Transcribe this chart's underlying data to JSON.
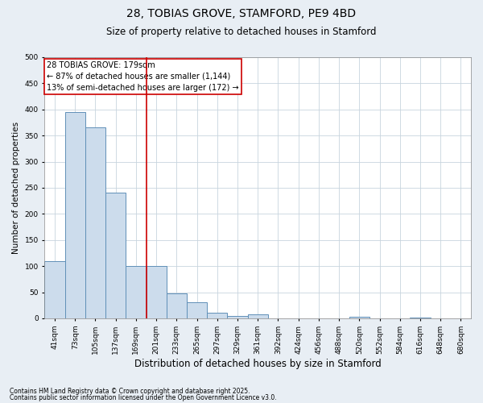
{
  "title": "28, TOBIAS GROVE, STAMFORD, PE9 4BD",
  "subtitle": "Size of property relative to detached houses in Stamford",
  "xlabel": "Distribution of detached houses by size in Stamford",
  "ylabel": "Number of detached properties",
  "footnote1": "Contains HM Land Registry data © Crown copyright and database right 2025.",
  "footnote2": "Contains public sector information licensed under the Open Government Licence v3.0.",
  "annotation_line1": "28 TOBIAS GROVE: 179sqm",
  "annotation_line2": "← 87% of detached houses are smaller (1,144)",
  "annotation_line3": "13% of semi-detached houses are larger (172) →",
  "bar_color": "#ccdcec",
  "bar_edge_color": "#6090b8",
  "vline_color": "#cc0000",
  "vline_x_index": 5,
  "categories": [
    "41sqm",
    "73sqm",
    "105sqm",
    "137sqm",
    "169sqm",
    "201sqm",
    "233sqm",
    "265sqm",
    "297sqm",
    "329sqm",
    "361sqm",
    "392sqm",
    "424sqm",
    "456sqm",
    "488sqm",
    "520sqm",
    "552sqm",
    "584sqm",
    "616sqm",
    "648sqm",
    "680sqm"
  ],
  "values": [
    110,
    395,
    365,
    240,
    100,
    100,
    47,
    30,
    10,
    5,
    8,
    0,
    0,
    0,
    0,
    3,
    0,
    0,
    2,
    0,
    0
  ],
  "ylim": [
    0,
    500
  ],
  "yticks": [
    0,
    50,
    100,
    150,
    200,
    250,
    300,
    350,
    400,
    450,
    500
  ],
  "background_color": "#e8eef4",
  "plot_bg_color": "#ffffff",
  "grid_color": "#c8d4de",
  "title_fontsize": 10,
  "subtitle_fontsize": 8.5,
  "xlabel_fontsize": 8.5,
  "ylabel_fontsize": 7.5,
  "tick_fontsize": 6.5,
  "footnote_fontsize": 5.5,
  "annotation_fontsize": 7
}
